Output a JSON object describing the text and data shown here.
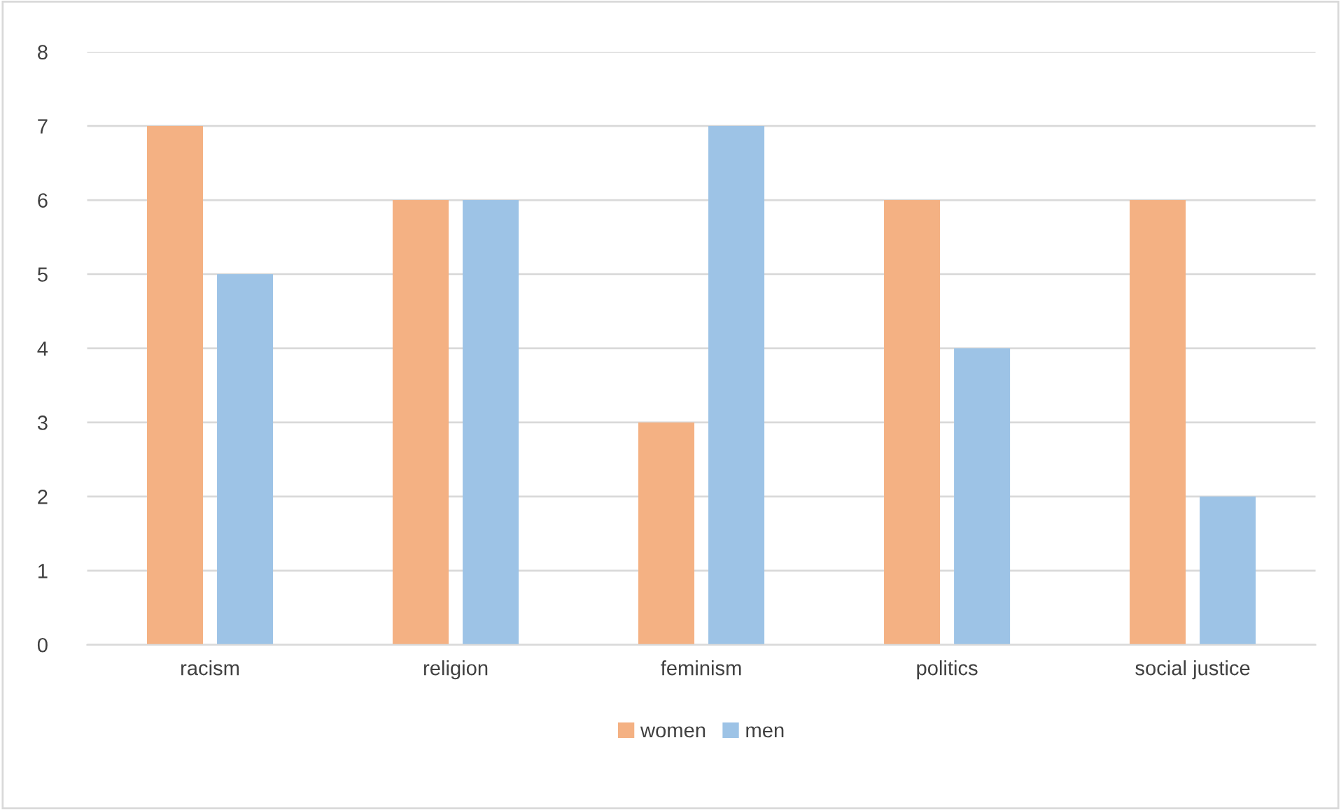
{
  "chart_data": {
    "type": "bar",
    "categories": [
      "racism",
      "religion",
      "feminism",
      "politics",
      "social justice"
    ],
    "series": [
      {
        "name": "women",
        "color": "#f4b183",
        "values": [
          7,
          6,
          3,
          6,
          6
        ]
      },
      {
        "name": "men",
        "color": "#9dc3e6",
        "values": [
          5,
          6,
          7,
          4,
          2
        ]
      }
    ],
    "ylim": [
      0,
      8
    ],
    "yticks": [
      0,
      1,
      2,
      3,
      4,
      5,
      6,
      7,
      8
    ],
    "grid": "y",
    "legend": "bottom"
  }
}
